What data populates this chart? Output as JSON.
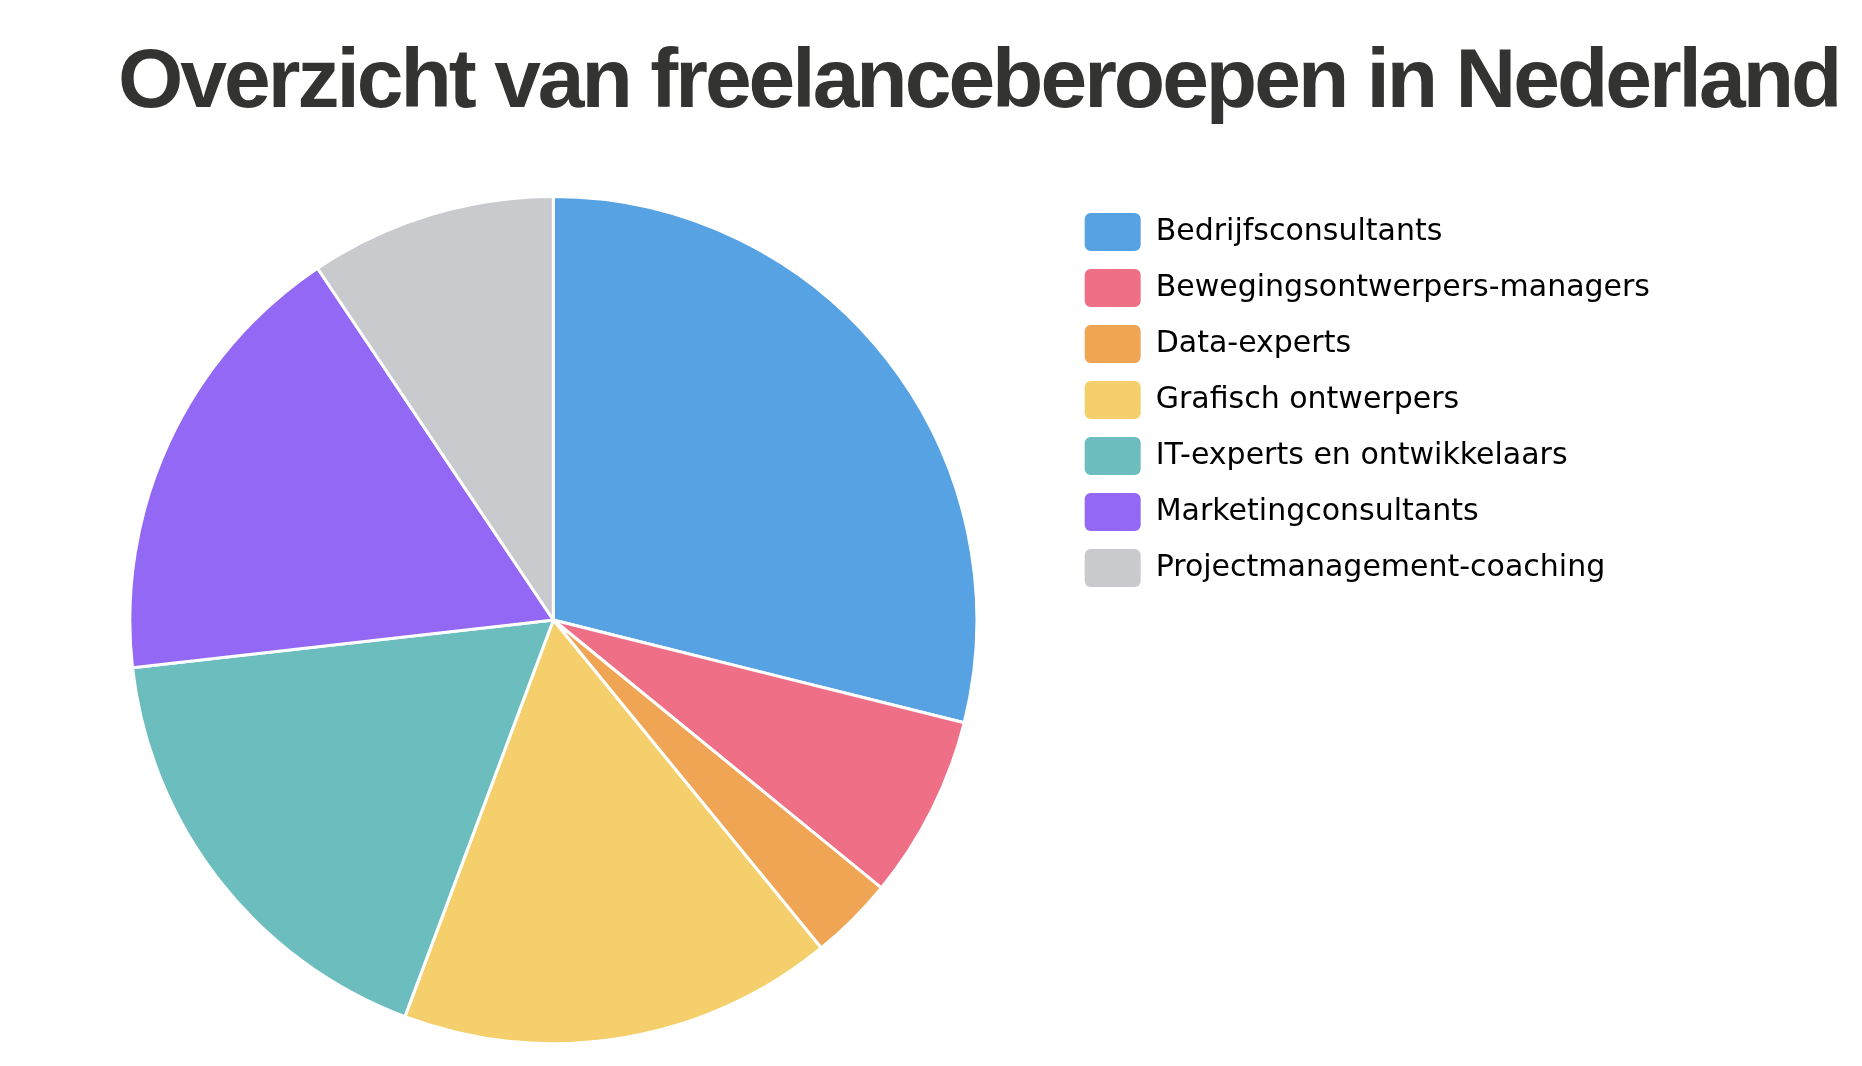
{
  "chart_data": {
    "type": "pie",
    "title": "Overzicht van freelanceberoepen in Nederland",
    "categories": [
      "Bedrijfsconsultants",
      "Bewegingsontwerpers-managers",
      "Data-experts",
      "Grafisch ontwerpers",
      "IT-experts en ontwikkelaars",
      "Marketingconsultants",
      "Projectmanagement-coaching"
    ],
    "values": [
      28.9,
      7.0,
      3.2,
      16.6,
      17.5,
      17.4,
      9.4
    ],
    "colors": [
      "#57a2e3",
      "#ee6f86",
      "#f0a555",
      "#f4cf6b",
      "#6cbdbd",
      "#9268f4",
      "#c8cacd"
    ],
    "legend": "top right"
  }
}
